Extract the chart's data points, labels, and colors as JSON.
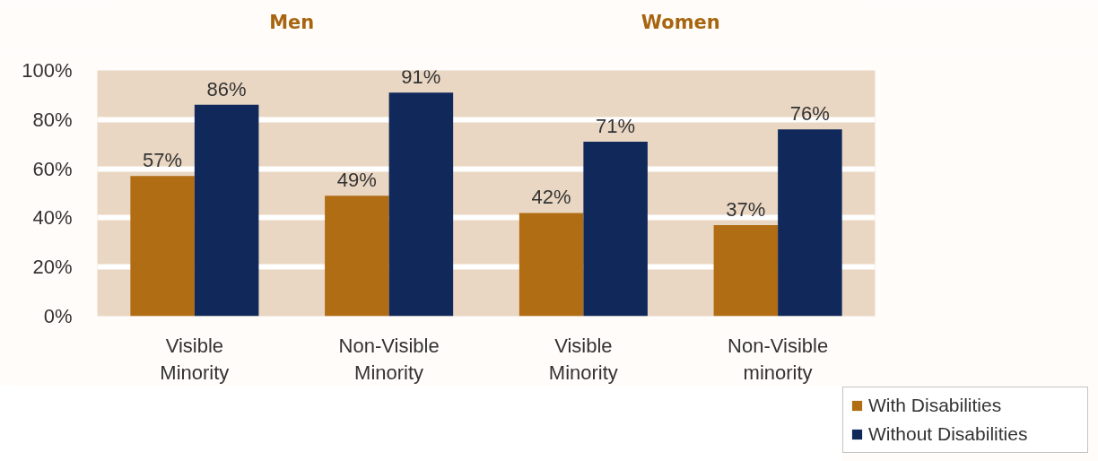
{
  "chart_data": {
    "type": "bar",
    "categories": [
      "Visible Minority",
      "Non-Visible Minority",
      "Visible Minority",
      "Non-Visible minority"
    ],
    "series": [
      {
        "name": "With Disabilities",
        "color": "#b06d14",
        "values": [
          57,
          49,
          42,
          37
        ],
        "value_labels": [
          "57%",
          "49%",
          "42%",
          "37%"
        ]
      },
      {
        "name": "Without Disabilities",
        "color": "#10295a",
        "values": [
          86,
          91,
          71,
          76
        ],
        "value_labels": [
          "86%",
          "91%",
          "71%",
          "76%"
        ]
      }
    ],
    "ylim": [
      0,
      100
    ],
    "yticks": [
      {
        "value": 0,
        "label": "0%"
      },
      {
        "value": 20,
        "label": "20%"
      },
      {
        "value": 40,
        "label": "40%"
      },
      {
        "value": 60,
        "label": "60%"
      },
      {
        "value": 80,
        "label": "80%"
      },
      {
        "value": 100,
        "label": "100%"
      }
    ],
    "grid": "y",
    "legend": "bottom right",
    "annotations": [
      "Men",
      "Women"
    ]
  }
}
